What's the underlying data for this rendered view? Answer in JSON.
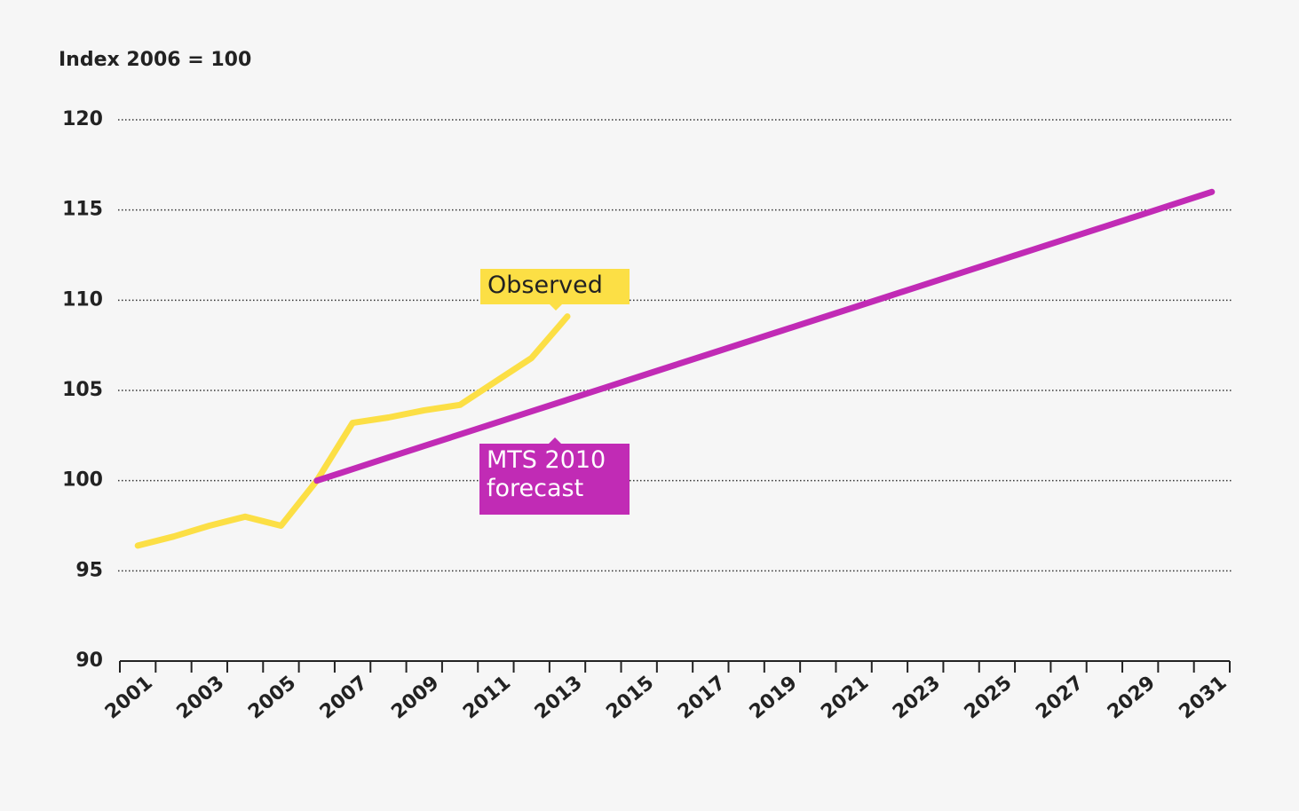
{
  "chart_data": {
    "type": "line",
    "y_axis_label": "Index 2006 = 100",
    "categories": [
      "2001",
      null,
      "2003",
      null,
      "2005",
      null,
      "2007",
      null,
      "2009",
      null,
      "2011",
      null,
      "2013",
      null,
      "2015",
      null,
      "2017",
      null,
      "2019",
      null,
      "2021",
      null,
      "2023",
      null,
      "2025",
      null,
      "2027",
      null,
      "2029",
      null,
      "2031"
    ],
    "series": [
      {
        "name": "Observed",
        "color": "#fcdf45",
        "values": [
          96.4,
          96.9,
          97.5,
          98.0,
          97.5,
          100,
          103.2,
          103.5,
          103.9,
          104.2,
          105.5,
          106.8,
          109.1,
          null,
          null,
          null,
          null,
          null,
          null,
          null,
          null,
          null,
          null,
          null,
          null,
          null,
          null,
          null,
          null,
          null,
          null
        ]
      },
      {
        "name": "MTS 2010 forecast",
        "color": "#c12bb5",
        "values": [
          null,
          null,
          null,
          null,
          null,
          100,
          100.64,
          101.28,
          101.92,
          102.56,
          103.2,
          103.84,
          104.48,
          105.12,
          105.76,
          106.4,
          107.04,
          107.68,
          108.32,
          108.96,
          109.6,
          110.24,
          110.88,
          111.52,
          112.16,
          112.8,
          113.44,
          114.08,
          114.72,
          115.36,
          116
        ]
      }
    ],
    "ylim": [
      90,
      120
    ],
    "yticks": [
      90,
      95,
      100,
      105,
      110,
      115,
      120
    ],
    "grid": true
  }
}
